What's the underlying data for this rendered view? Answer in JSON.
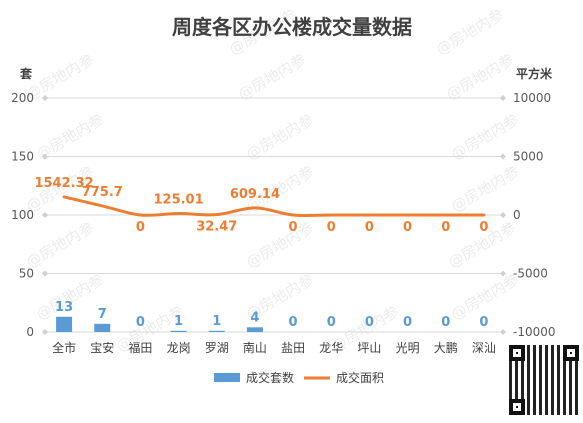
{
  "chart_data": {
    "type": "bar",
    "title": "周度各区办公楼成交量数据",
    "categories": [
      "全市",
      "宝安",
      "福田",
      "龙岗",
      "罗湖",
      "南山",
      "盐田",
      "龙华",
      "坪山",
      "光明",
      "大鹏",
      "深汕"
    ],
    "ylabel_left": "套",
    "ylabel_right": "平方米",
    "y_left": {
      "range": [
        0,
        200
      ],
      "ticks": [
        0,
        50,
        100,
        150,
        200
      ]
    },
    "y_right": {
      "range": [
        -10000,
        10000
      ],
      "ticks": [
        "-10000",
        "-5000",
        "0",
        "5000",
        "10000"
      ]
    },
    "series": [
      {
        "name": "成交套数",
        "type": "bar",
        "axis": "left",
        "color": "#5B9BD5",
        "values": [
          13,
          7,
          0,
          1,
          1,
          4,
          0,
          0,
          0,
          0,
          0,
          0
        ]
      },
      {
        "name": "成交面积",
        "type": "line",
        "axis": "right",
        "color": "#ED7D31",
        "values": [
          1542.32,
          775.7,
          0,
          125.01,
          32.47,
          609.14,
          0,
          0,
          0,
          0,
          0,
          0
        ],
        "labels": [
          "1542.32",
          "775.7",
          "0",
          "125.01",
          "32.47",
          "609.14",
          "0",
          "0",
          "0",
          "0",
          "0",
          "0"
        ]
      }
    ],
    "legend": "bottom",
    "grid": true,
    "watermark": "@房地内参"
  }
}
